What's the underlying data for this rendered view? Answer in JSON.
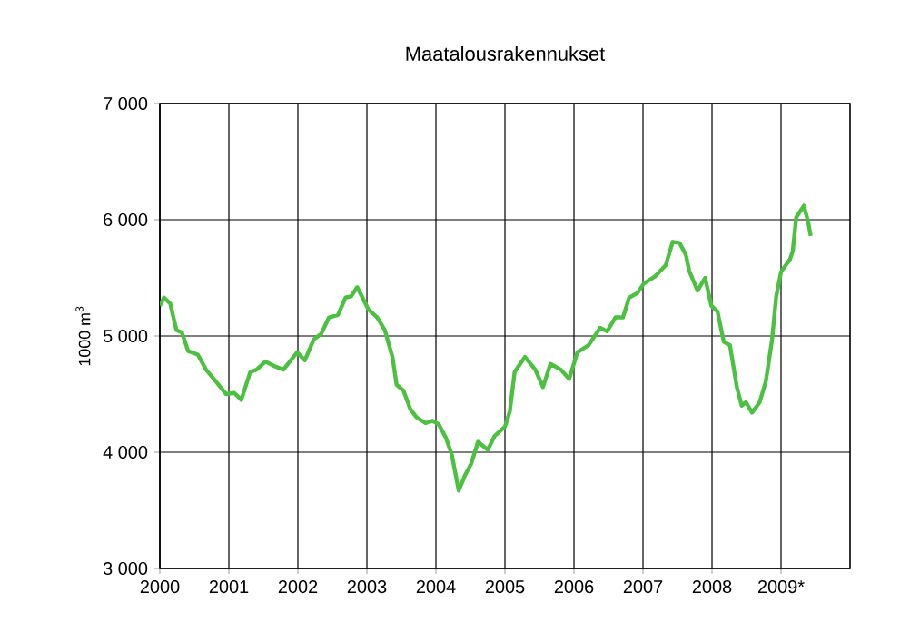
{
  "chart_data": {
    "type": "line",
    "title": "Maatalousrakennukset",
    "ylabel": "1000 m$^{3}$",
    "xlim": [
      2000,
      2010
    ],
    "xticks": [
      2000,
      2001,
      2002,
      2003,
      2004,
      2005,
      2006,
      2007,
      2008,
      {
        "value": 2009,
        "label": "2009*"
      }
    ],
    "ylim": [
      3000,
      7000
    ],
    "yticks": [
      {
        "value": 3000,
        "label": "3 000"
      },
      {
        "value": 4000,
        "label": "4 000"
      },
      {
        "value": 5000,
        "label": "5 000"
      },
      {
        "value": 6000,
        "label": "6 000"
      },
      {
        "value": 7000,
        "label": "7 000"
      }
    ],
    "grid": true,
    "marker": "none",
    "line_style": "solid",
    "series": [
      {
        "color": "#4cc040",
        "x": [
          2000.0,
          2000.06,
          2000.15,
          2000.24,
          2000.32,
          2000.41,
          2000.55,
          2000.67,
          2000.81,
          2000.96,
          2001.08,
          2001.18,
          2001.31,
          2001.4,
          2001.53,
          2001.66,
          2001.79,
          2001.99,
          2002.1,
          2002.23,
          2002.34,
          2002.45,
          2002.58,
          2002.69,
          2002.77,
          2002.86,
          2003.02,
          2003.15,
          2003.26,
          2003.37,
          2003.43,
          2003.53,
          2003.63,
          2003.72,
          2003.85,
          2003.95,
          2004.04,
          2004.14,
          2004.23,
          2004.33,
          2004.42,
          2004.51,
          2004.61,
          2004.75,
          2004.85,
          2005.0,
          2005.07,
          2005.14,
          2005.29,
          2005.44,
          2005.55,
          2005.66,
          2005.81,
          2005.93,
          2006.05,
          2006.21,
          2006.38,
          2006.48,
          2006.6,
          2006.71,
          2006.8,
          2006.92,
          2007.01,
          2007.17,
          2007.33,
          2007.43,
          2007.53,
          2007.62,
          2007.67,
          2007.79,
          2007.9,
          2007.99,
          2008.08,
          2008.17,
          2008.26,
          2008.36,
          2008.43,
          2008.49,
          2008.58,
          2008.69,
          2008.78,
          2008.87,
          2008.93,
          2009.0,
          2009.13,
          2009.17,
          2009.22,
          2009.33,
          2009.39,
          2009.43
        ],
        "values": [
          5260,
          5330,
          5280,
          5050,
          5030,
          4870,
          4840,
          4710,
          4610,
          4500,
          4510,
          4450,
          4690,
          4710,
          4780,
          4740,
          4710,
          4860,
          4790,
          4970,
          5020,
          5160,
          5180,
          5330,
          5340,
          5420,
          5230,
          5160,
          5050,
          4820,
          4580,
          4530,
          4370,
          4300,
          4250,
          4270,
          4240,
          4130,
          3980,
          3670,
          3800,
          3900,
          4090,
          4020,
          4140,
          4220,
          4350,
          4690,
          4820,
          4710,
          4560,
          4760,
          4710,
          4630,
          4860,
          4920,
          5070,
          5040,
          5160,
          5160,
          5330,
          5370,
          5450,
          5510,
          5610,
          5810,
          5800,
          5700,
          5560,
          5390,
          5500,
          5260,
          5210,
          4950,
          4920,
          4560,
          4400,
          4430,
          4340,
          4430,
          4610,
          4970,
          5340,
          5550,
          5660,
          5730,
          6020,
          6120,
          5990,
          5860
        ]
      }
    ]
  }
}
